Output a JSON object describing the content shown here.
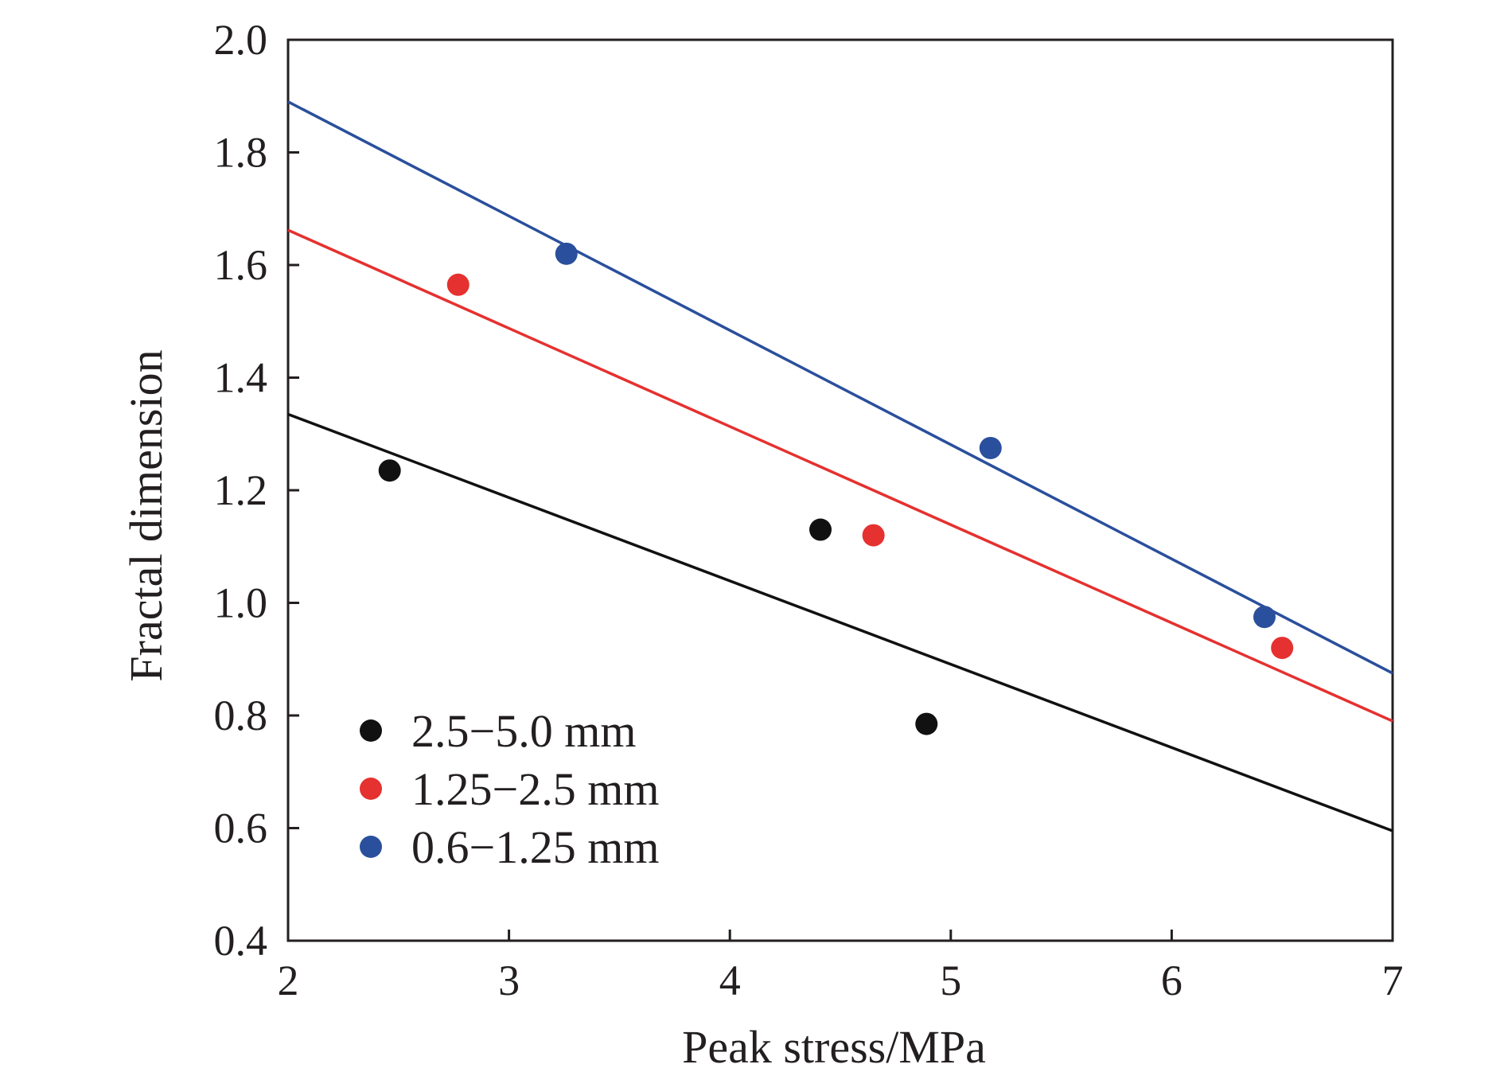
{
  "chart_data": {
    "type": "scatter",
    "title": "",
    "xlabel": "Peak stress/MPa",
    "ylabel": "Fractal dimension",
    "xlim": [
      2,
      7
    ],
    "ylim": [
      0.4,
      2.0
    ],
    "xticks": [
      "2",
      "3",
      "4",
      "5",
      "6",
      "7"
    ],
    "yticks": [
      "0.4",
      "0.6",
      "0.8",
      "1.0",
      "1.2",
      "1.4",
      "1.6",
      "1.8",
      "2.0"
    ],
    "grid": false,
    "legend_position": "bottom-left",
    "series": [
      {
        "name": "2.5−5.0 mm",
        "color": "#111111",
        "x": [
          2.46,
          4.41,
          4.89
        ],
        "y": [
          1.235,
          1.13,
          0.785
        ],
        "fit_line": {
          "x": [
            2,
            7
          ],
          "y": [
            1.335,
            0.595
          ]
        }
      },
      {
        "name": "1.25−2.5 mm",
        "color": "#e5312f",
        "x": [
          2.77,
          4.65,
          6.5
        ],
        "y": [
          1.565,
          1.12,
          0.92
        ],
        "fit_line": {
          "x": [
            2,
            7
          ],
          "y": [
            1.662,
            0.79
          ]
        }
      },
      {
        "name": "0.6−1.25 mm",
        "color": "#2a4f9c",
        "x": [
          3.26,
          5.18,
          6.42
        ],
        "y": [
          1.62,
          1.275,
          0.975
        ],
        "fit_line": {
          "x": [
            2,
            7
          ],
          "y": [
            1.89,
            0.875
          ]
        }
      }
    ]
  }
}
